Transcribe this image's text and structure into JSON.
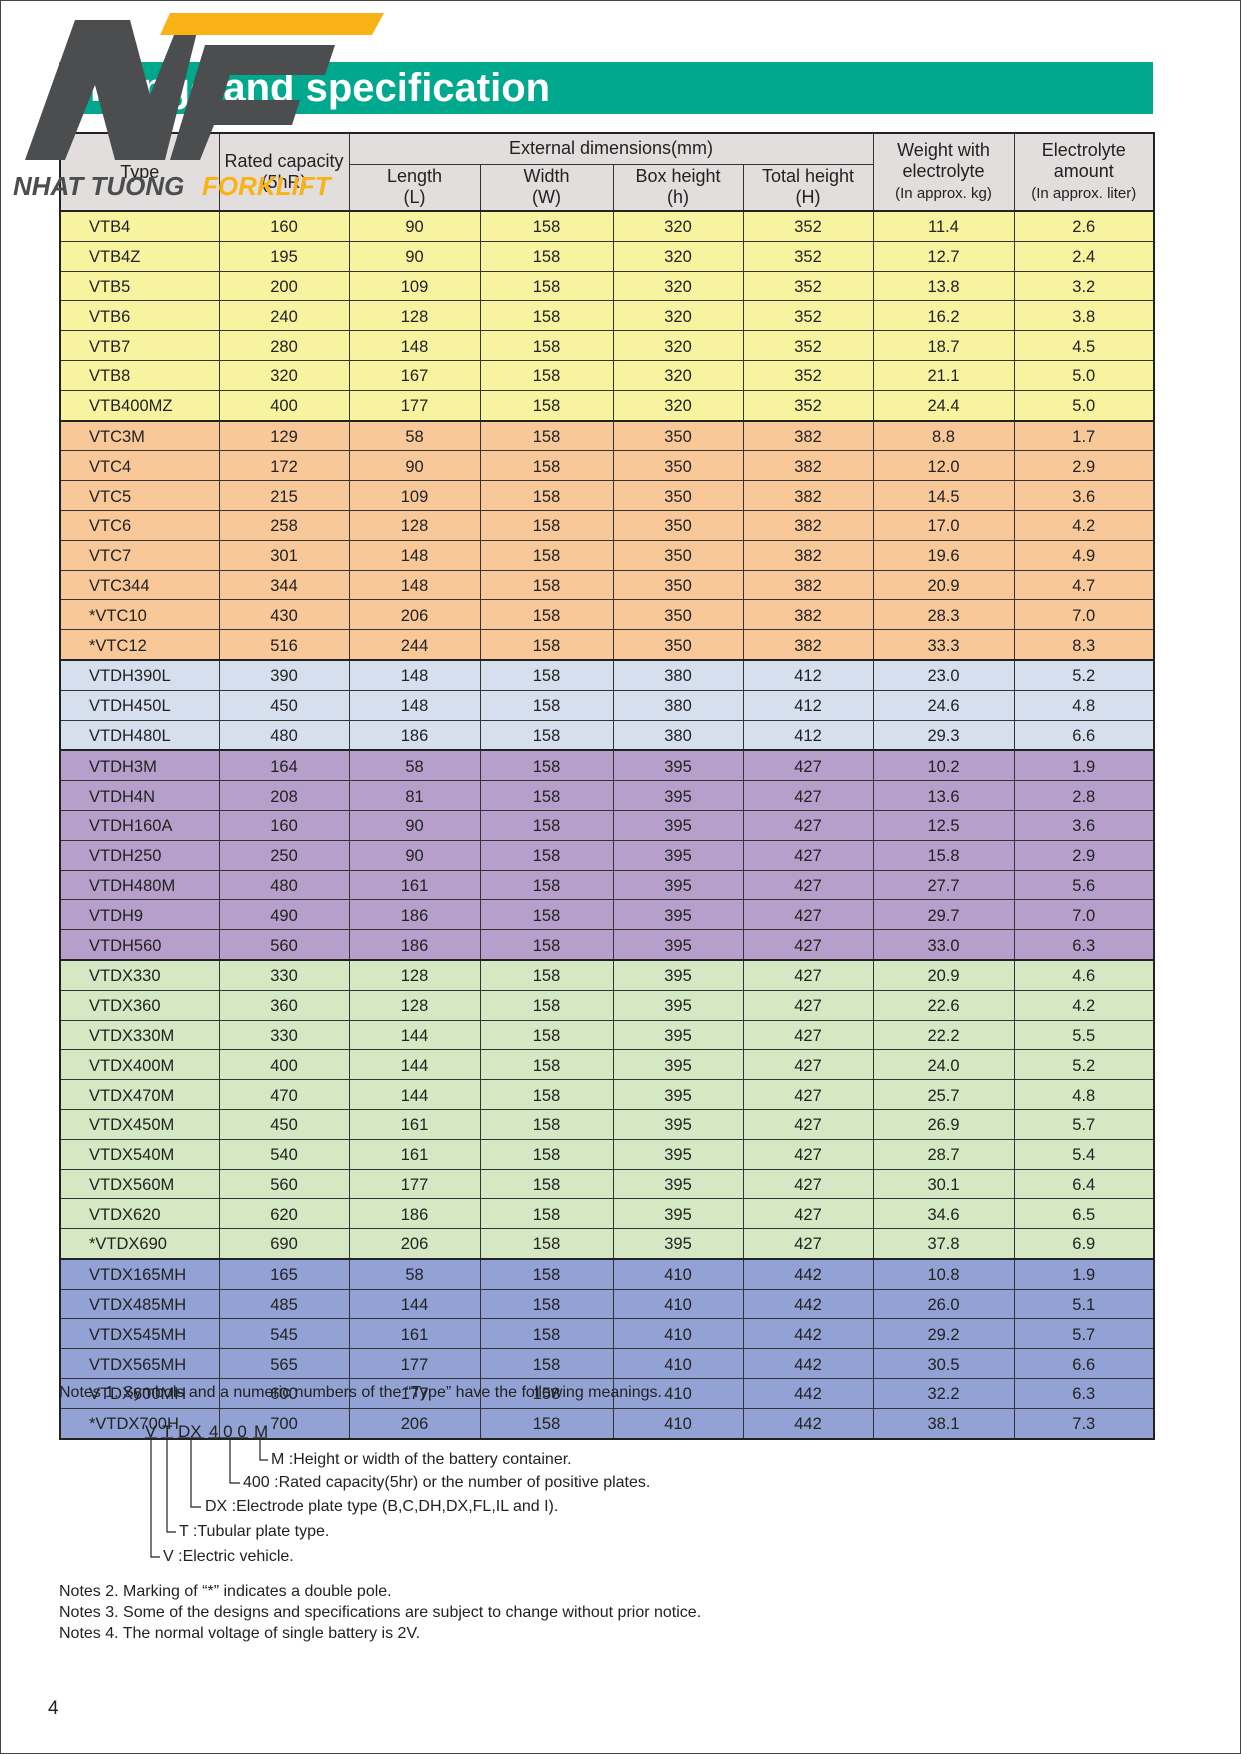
{
  "logo": {
    "name": "NHAT TUONG",
    "accent": "FORKLIFT"
  },
  "title": "Range and specification",
  "table": {
    "header": {
      "type": "Type",
      "capacity": "Rated capacity",
      "capacity_unit": "(5hR)",
      "dimensions": "External dimensions(mm)",
      "length": "Length",
      "length_sym": "(L)",
      "width": "Width",
      "width_sym": "(W)",
      "box_height": "Box height",
      "box_height_sym": "(h)",
      "total_height": "Total height",
      "total_height_sym": "(H)",
      "weight": "Weight with electrolyte",
      "weight_unit": "(In approx. kg)",
      "electrolyte": "Electrolyte amount",
      "electrolyte_unit": "(In approx. liter)"
    },
    "groups": [
      {
        "color": "#f7f39f",
        "rows": [
          [
            "VTB4",
            "160",
            "90",
            "158",
            "320",
            "352",
            "11.4",
            "2.6"
          ],
          [
            "VTB4Z",
            "195",
            "90",
            "158",
            "320",
            "352",
            "12.7",
            "2.4"
          ],
          [
            "VTB5",
            "200",
            "109",
            "158",
            "320",
            "352",
            "13.8",
            "3.2"
          ],
          [
            "VTB6",
            "240",
            "128",
            "158",
            "320",
            "352",
            "16.2",
            "3.8"
          ],
          [
            "VTB7",
            "280",
            "148",
            "158",
            "320",
            "352",
            "18.7",
            "4.5"
          ],
          [
            "VTB8",
            "320",
            "167",
            "158",
            "320",
            "352",
            "21.1",
            "5.0"
          ],
          [
            "VTB400MZ",
            "400",
            "177",
            "158",
            "320",
            "352",
            "24.4",
            "5.0"
          ]
        ]
      },
      {
        "color": "#f9c899",
        "rows": [
          [
            "VTC3M",
            "129",
            "58",
            "158",
            "350",
            "382",
            "8.8",
            "1.7"
          ],
          [
            "VTC4",
            "172",
            "90",
            "158",
            "350",
            "382",
            "12.0",
            "2.9"
          ],
          [
            "VTC5",
            "215",
            "109",
            "158",
            "350",
            "382",
            "14.5",
            "3.6"
          ],
          [
            "VTC6",
            "258",
            "128",
            "158",
            "350",
            "382",
            "17.0",
            "4.2"
          ],
          [
            "VTC7",
            "301",
            "148",
            "158",
            "350",
            "382",
            "19.6",
            "4.9"
          ],
          [
            "VTC344",
            "344",
            "148",
            "158",
            "350",
            "382",
            "20.9",
            "4.7"
          ],
          [
            "*VTC10",
            "430",
            "206",
            "158",
            "350",
            "382",
            "28.3",
            "7.0"
          ],
          [
            "*VTC12",
            "516",
            "244",
            "158",
            "350",
            "382",
            "33.3",
            "8.3"
          ]
        ]
      },
      {
        "color": "#d5dfee",
        "rows": [
          [
            "VTDH390L",
            "390",
            "148",
            "158",
            "380",
            "412",
            "23.0",
            "5.2"
          ],
          [
            "VTDH450L",
            "450",
            "148",
            "158",
            "380",
            "412",
            "24.6",
            "4.8"
          ],
          [
            "VTDH480L",
            "480",
            "186",
            "158",
            "380",
            "412",
            "29.3",
            "6.6"
          ]
        ]
      },
      {
        "color": "#b79fcb",
        "rows": [
          [
            "VTDH3M",
            "164",
            "58",
            "158",
            "395",
            "427",
            "10.2",
            "1.9"
          ],
          [
            "VTDH4N",
            "208",
            "81",
            "158",
            "395",
            "427",
            "13.6",
            "2.8"
          ],
          [
            "VTDH160A",
            "160",
            "90",
            "158",
            "395",
            "427",
            "12.5",
            "3.6"
          ],
          [
            "VTDH250",
            "250",
            "90",
            "158",
            "395",
            "427",
            "15.8",
            "2.9"
          ],
          [
            "VTDH480M",
            "480",
            "161",
            "158",
            "395",
            "427",
            "27.7",
            "5.6"
          ],
          [
            "VTDH9",
            "490",
            "186",
            "158",
            "395",
            "427",
            "29.7",
            "7.0"
          ],
          [
            "VTDH560",
            "560",
            "186",
            "158",
            "395",
            "427",
            "33.0",
            "6.3"
          ]
        ]
      },
      {
        "color": "#d3e8c3",
        "rows": [
          [
            "VTDX330",
            "330",
            "128",
            "158",
            "395",
            "427",
            "20.9",
            "4.6"
          ],
          [
            "VTDX360",
            "360",
            "128",
            "158",
            "395",
            "427",
            "22.6",
            "4.2"
          ],
          [
            "VTDX330M",
            "330",
            "144",
            "158",
            "395",
            "427",
            "22.2",
            "5.5"
          ],
          [
            "VTDX400M",
            "400",
            "144",
            "158",
            "395",
            "427",
            "24.0",
            "5.2"
          ],
          [
            "VTDX470M",
            "470",
            "144",
            "158",
            "395",
            "427",
            "25.7",
            "4.8"
          ],
          [
            "VTDX450M",
            "450",
            "161",
            "158",
            "395",
            "427",
            "26.9",
            "5.7"
          ],
          [
            "VTDX540M",
            "540",
            "161",
            "158",
            "395",
            "427",
            "28.7",
            "5.4"
          ],
          [
            "VTDX560M",
            "560",
            "177",
            "158",
            "395",
            "427",
            "30.1",
            "6.4"
          ],
          [
            "VTDX620",
            "620",
            "186",
            "158",
            "395",
            "427",
            "34.6",
            "6.5"
          ],
          [
            "*VTDX690",
            "690",
            "206",
            "158",
            "395",
            "427",
            "37.8",
            "6.9"
          ]
        ]
      },
      {
        "color": "#93a2d4",
        "rows": [
          [
            "VTDX165MH",
            "165",
            "58",
            "158",
            "410",
            "442",
            "10.8",
            "1.9"
          ],
          [
            "VTDX485MH",
            "485",
            "144",
            "158",
            "410",
            "442",
            "26.0",
            "5.1"
          ],
          [
            "VTDX545MH",
            "545",
            "161",
            "158",
            "410",
            "442",
            "29.2",
            "5.7"
          ],
          [
            "VTDX565MH",
            "565",
            "177",
            "158",
            "410",
            "442",
            "30.5",
            "6.6"
          ],
          [
            "VTDX600MH",
            "600",
            "177",
            "158",
            "410",
            "442",
            "32.2",
            "6.3"
          ],
          [
            "*VTDX700H",
            "700",
            "206",
            "158",
            "410",
            "442",
            "38.1",
            "7.3"
          ]
        ]
      }
    ]
  },
  "notes": {
    "note1": "Notes 1. Symbols and a numeric numbers of the “Type” have the following meanings.",
    "code": [
      "V",
      "T",
      "DX",
      "4 0 0",
      "M"
    ],
    "meanings": [
      "V :Electric vehicle.",
      "T :Tubular plate type.",
      "DX :Electrode plate type (B,C,DH,DX,FL,IL and I).",
      "400 :Rated capacity(5hr) or the number of positive plates.",
      "M :Height or width of the battery container."
    ],
    "others": [
      "Notes 2. Marking of “*” indicates a double pole.",
      "Notes 3. Some of the designs and specifications are subject to change without prior notice.",
      "Notes 4. The normal voltage of single battery is 2V."
    ]
  },
  "page_number": "4"
}
